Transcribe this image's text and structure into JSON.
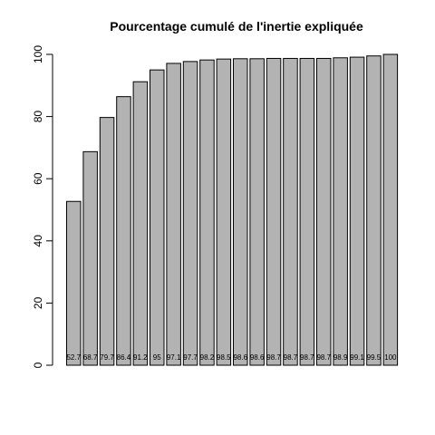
{
  "chart_data": {
    "type": "bar",
    "title": "Pourcentage cumulé de l'inertie expliquée",
    "xlabel": "",
    "ylabel": "",
    "ylim": [
      0,
      100
    ],
    "yticks": [
      0,
      20,
      40,
      60,
      80,
      100
    ],
    "grid": false,
    "values": [
      52.7,
      68.7,
      79.7,
      86.4,
      91.2,
      95,
      97.1,
      97.7,
      98.2,
      98.5,
      98.6,
      98.6,
      98.7,
      98.7,
      98.7,
      98.7,
      98.9,
      99.1,
      99.5,
      100
    ],
    "value_labels": [
      "52.7",
      "68.7",
      "79.7",
      "86.4",
      "91.2",
      "95",
      "97.1",
      "97.7",
      "98.2",
      "98.5",
      "98.6",
      "98.6",
      "98.7",
      "98.7",
      "98.7",
      "98.7",
      "98.9",
      "99.1",
      "99.5",
      "100"
    ],
    "bar_color": "#b3b3b3"
  }
}
